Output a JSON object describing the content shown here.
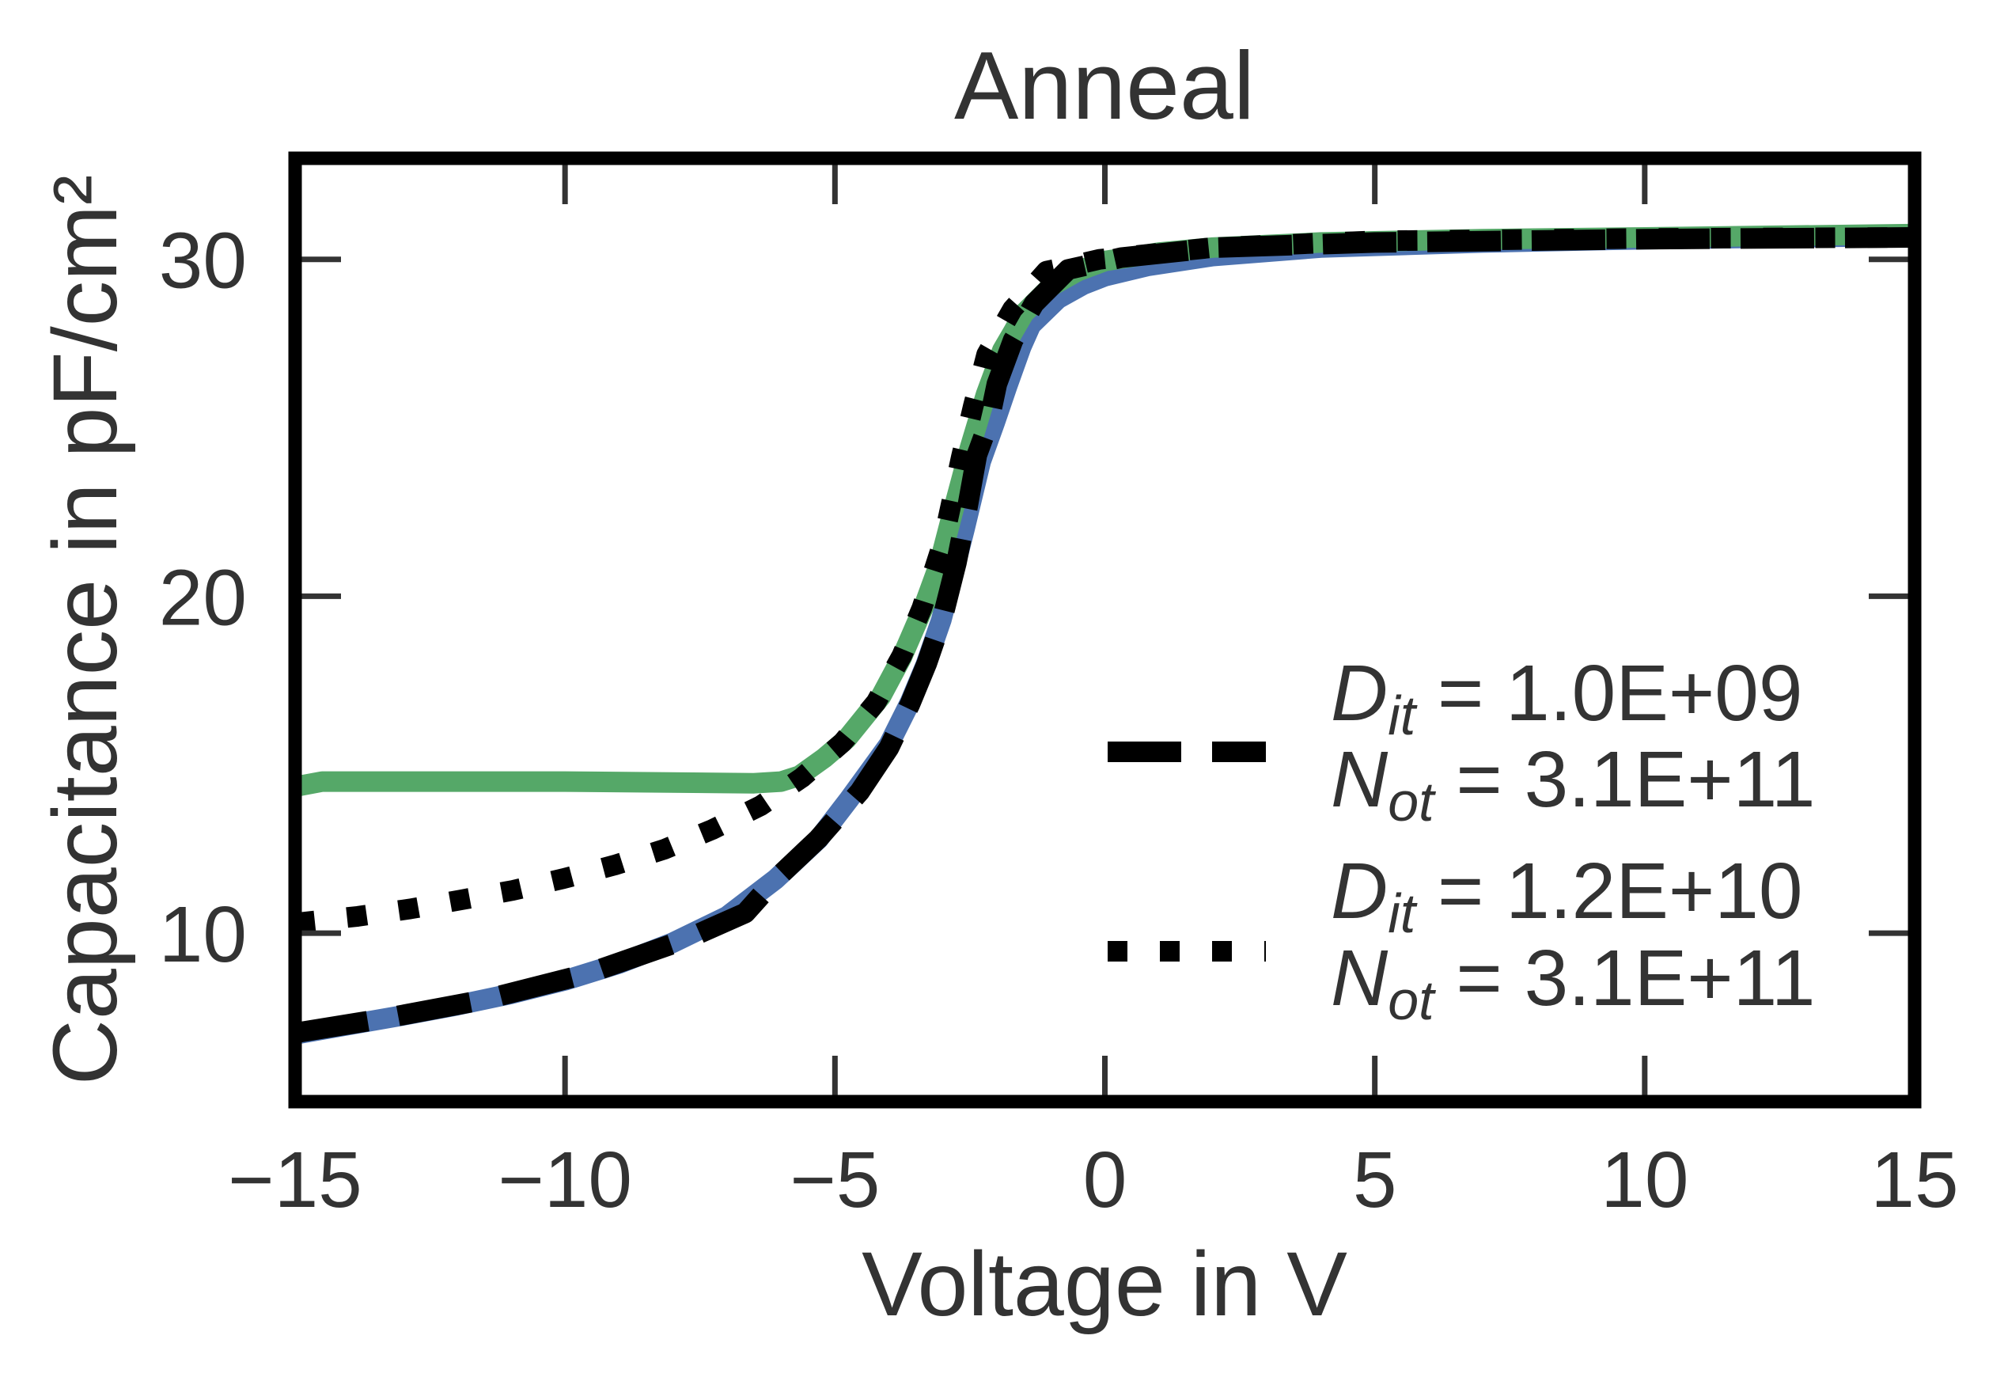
{
  "chart_data": {
    "type": "line",
    "title": "Anneal",
    "xlabel": "Voltage in V",
    "ylabel": "Capacitance in pF/cm²",
    "xlim": [
      -15,
      15
    ],
    "ylim": [
      5,
      33
    ],
    "xticks": [
      -15,
      -10,
      -5,
      0,
      5,
      10,
      15
    ],
    "xtick_labels": [
      "−15",
      "−10",
      "−5",
      "0",
      "5",
      "10",
      "15"
    ],
    "yticks": [
      10,
      20,
      30
    ],
    "ytick_labels": [
      "10",
      "20",
      "30"
    ],
    "grid": false,
    "legend_position": "center-right",
    "series": [
      {
        "name": "measured (blue)",
        "in_legend": false,
        "color": "#4C72B0",
        "style": "solid",
        "points": [
          [
            -15,
            7.0
          ],
          [
            -14,
            7.28
          ],
          [
            -13,
            7.56
          ],
          [
            -12,
            7.86
          ],
          [
            -11,
            8.2
          ],
          [
            -10,
            8.6
          ],
          [
            -9,
            9.1
          ],
          [
            -8,
            9.72
          ],
          [
            -7,
            10.5
          ],
          [
            -6.1,
            11.6
          ],
          [
            -5.3,
            12.8
          ],
          [
            -4.74,
            13.97
          ],
          [
            -4.0,
            15.6
          ],
          [
            -3.61,
            16.85
          ],
          [
            -3.32,
            17.96
          ],
          [
            -3.03,
            19.3
          ],
          [
            -2.84,
            20.47
          ],
          [
            -2.6,
            22.0
          ],
          [
            -2.3,
            24.0
          ],
          [
            -2.04,
            25.16
          ],
          [
            -1.81,
            26.24
          ],
          [
            -1.55,
            27.4
          ],
          [
            -1.37,
            28.05
          ],
          [
            -0.87,
            28.83
          ],
          [
            -0.4,
            29.25
          ],
          [
            0,
            29.5
          ],
          [
            0.78,
            29.8
          ],
          [
            2,
            30.1
          ],
          [
            4,
            30.35
          ],
          [
            7,
            30.5
          ],
          [
            10,
            30.6
          ],
          [
            15,
            30.7
          ]
        ]
      },
      {
        "name": "measured (green)",
        "in_legend": false,
        "color": "#55A868",
        "style": "solid",
        "points": [
          [
            -15,
            14.35
          ],
          [
            -14.5,
            14.5
          ],
          [
            -10,
            14.5
          ],
          [
            -6.5,
            14.45
          ],
          [
            -6.0,
            14.5
          ],
          [
            -5.66,
            14.67
          ],
          [
            -5.2,
            15.2
          ],
          [
            -4.78,
            15.77
          ],
          [
            -4.15,
            17.02
          ],
          [
            -3.76,
            18.19
          ],
          [
            -3.36,
            19.67
          ],
          [
            -3.07,
            20.94
          ],
          [
            -2.8,
            22.6
          ],
          [
            -2.5,
            24.4
          ],
          [
            -2.2,
            26.0
          ],
          [
            -1.9,
            27.3
          ],
          [
            -1.5,
            28.4
          ],
          [
            -1.0,
            29.2
          ],
          [
            -0.5,
            29.65
          ],
          [
            0,
            29.95
          ],
          [
            1,
            30.2
          ],
          [
            2,
            30.35
          ],
          [
            4,
            30.5
          ],
          [
            7,
            30.6
          ],
          [
            10,
            30.65
          ],
          [
            15,
            30.75
          ]
        ]
      },
      {
        "name": "fit dashed",
        "in_legend": true,
        "color": "#000000",
        "style": "dashed",
        "legend_lines": [
          {
            "var": "D",
            "sub": "it",
            "value": " = 1.0E+09"
          },
          {
            "var": "N",
            "sub": "ot",
            "value": " = 3.1E+11"
          }
        ],
        "points": [
          [
            -15,
            7.04
          ],
          [
            -13.34,
            7.47
          ],
          [
            -11.48,
            8.03
          ],
          [
            -9.58,
            8.8
          ],
          [
            -7.77,
            9.81
          ],
          [
            -6.66,
            10.6
          ],
          [
            -6.1,
            11.6
          ],
          [
            -5.31,
            12.8
          ],
          [
            -4.54,
            14.2
          ],
          [
            -4.0,
            15.5
          ],
          [
            -3.61,
            16.8
          ],
          [
            -3.3,
            18.0
          ],
          [
            -3.0,
            19.4
          ],
          [
            -2.75,
            21.0
          ],
          [
            -2.55,
            22.6
          ],
          [
            -2.37,
            24.2
          ],
          [
            -2.15,
            25.16
          ],
          [
            -2.0,
            26.3
          ],
          [
            -1.7,
            27.6
          ],
          [
            -1.31,
            28.69
          ],
          [
            -0.68,
            29.7
          ],
          [
            0.3,
            30.05
          ],
          [
            2.07,
            30.35
          ],
          [
            5,
            30.5
          ],
          [
            10,
            30.6
          ],
          [
            15,
            30.65
          ]
        ]
      },
      {
        "name": "fit dotted",
        "in_legend": true,
        "color": "#000000",
        "style": "dotted",
        "legend_lines": [
          {
            "var": "D",
            "sub": "it",
            "value": " = 1.2E+10"
          },
          {
            "var": "N",
            "sub": "ot",
            "value": " = 3.1E+11"
          }
        ],
        "points": [
          [
            -15,
            10.3
          ],
          [
            -13.84,
            10.5
          ],
          [
            -12.87,
            10.72
          ],
          [
            -11.92,
            10.99
          ],
          [
            -10.97,
            11.27
          ],
          [
            -10.03,
            11.62
          ],
          [
            -9.08,
            12.02
          ],
          [
            -8.16,
            12.49
          ],
          [
            -7.28,
            13.07
          ],
          [
            -6.38,
            13.78
          ],
          [
            -5.61,
            14.62
          ],
          [
            -4.86,
            15.66
          ],
          [
            -4.24,
            16.85
          ],
          [
            -3.76,
            18.24
          ],
          [
            -3.39,
            19.65
          ],
          [
            -3.0,
            21.6
          ],
          [
            -2.66,
            24.13
          ],
          [
            -2.44,
            25.63
          ],
          [
            -2.19,
            27.18
          ],
          [
            -1.71,
            28.52
          ],
          [
            -1.08,
            29.65
          ],
          [
            -0.64,
            29.8
          ],
          [
            -0.1,
            30.0
          ],
          [
            2,
            30.35
          ],
          [
            5,
            30.55
          ],
          [
            10,
            30.62
          ],
          [
            15,
            30.65
          ]
        ]
      }
    ]
  }
}
